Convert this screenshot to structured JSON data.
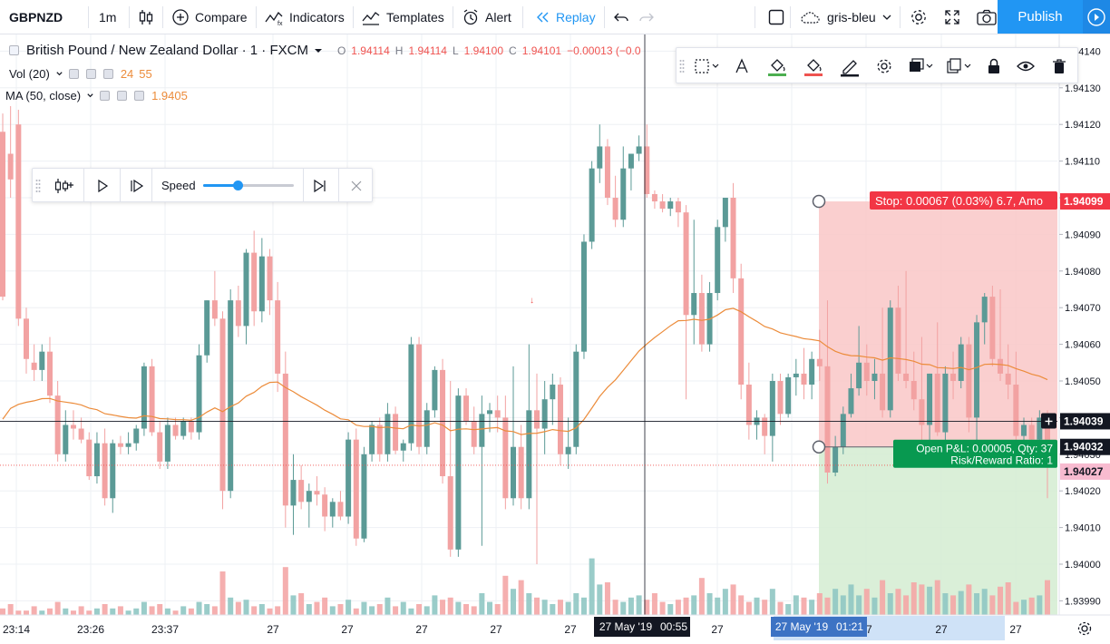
{
  "toolbar": {
    "symbol": "GBPNZD",
    "interval": "1m",
    "compare_label": "Compare",
    "indicators_label": "Indicators",
    "templates_label": "Templates",
    "alert_label": "Alert",
    "replay_label": "Replay",
    "layout_name": "gris-bleu",
    "publish_label": "Publish"
  },
  "legend": {
    "title": "British Pound / New Zealand Dollar · 1 · FXCM",
    "ohlc": {
      "o_label": "O",
      "o": "1.94114",
      "h_label": "H",
      "h": "1.94114",
      "l_label": "L",
      "l": "1.94100",
      "c_label": "C",
      "c": "1.94101",
      "change": "−0.00013 (−0.0"
    },
    "vol_label": "Vol (20)",
    "vol_values": [
      "24",
      "55"
    ],
    "ma_label": "MA (50, close)",
    "ma_value": "1.9405"
  },
  "replay_bar": {
    "speed_label": "Speed",
    "speed_level": 0.38
  },
  "chart_data": {
    "type": "candlestick",
    "price_axis": {
      "min": 1.93985,
      "max": 1.94143,
      "ticks": [
        "1.94140",
        "1.94130",
        "1.94120",
        "1.94110",
        "1.94100",
        "1.94090",
        "1.94080",
        "1.94070",
        "1.94060",
        "1.94050",
        "1.94040",
        "1.94030",
        "1.94020",
        "1.94010",
        "1.94000",
        "1.93990"
      ]
    },
    "time_ticks": [
      "23:14",
      "23:26",
      "23:37",
      "27",
      "27",
      "27",
      "27",
      "27",
      "27",
      "27",
      "27",
      "27"
    ],
    "crosshair": {
      "time_label": "27 May '19",
      "time_value": "00:55",
      "price": "1.94039"
    },
    "position": {
      "type": "long",
      "entry": 1.94032,
      "stop": 1.94099,
      "stop_label": "Stop: 0.00067 (0.03%) 6.7, Amo",
      "pnl_label": "Open P&L: 0.00005, Qty: 37",
      "rr_label": "Risk/Reward Ratio: 1",
      "date_label": "27 May '19",
      "time_label": "01:21"
    },
    "last_price": "1.94027",
    "colors": {
      "up": "#5b9a96",
      "down": "#f2a2a2",
      "ma": "#ec8c3b",
      "stop_zone": "#f9c7c7",
      "target_zone": "#d3ecd1"
    },
    "candles": [
      [
        1.94118,
        1.94123,
        1.94072,
        1.94073
      ],
      [
        1.94112,
        1.94125,
        1.941,
        1.94105
      ],
      [
        1.9412,
        1.94124,
        1.94065,
        1.94067
      ],
      [
        1.94067,
        1.9407,
        1.94052,
        1.94056
      ],
      [
        1.94055,
        1.9406,
        1.9405,
        1.94053
      ],
      [
        1.94053,
        1.9406,
        1.9405,
        1.94058
      ],
      [
        1.94058,
        1.94062,
        1.94044,
        1.94046
      ],
      [
        1.94046,
        1.9405,
        1.94028,
        1.9403
      ],
      [
        1.9403,
        1.94042,
        1.94028,
        1.94038
      ],
      [
        1.94038,
        1.94042,
        1.94034,
        1.94037
      ],
      [
        1.94037,
        1.9404,
        1.94033,
        1.94034
      ],
      [
        1.94034,
        1.94036,
        1.94023,
        1.94024
      ],
      [
        1.94024,
        1.94036,
        1.94022,
        1.94033
      ],
      [
        1.94033,
        1.94037,
        1.94016,
        1.94018
      ],
      [
        1.94018,
        1.94034,
        1.94014,
        1.94033
      ],
      [
        1.94033,
        1.94035,
        1.9403,
        1.94032
      ],
      [
        1.94032,
        1.94036,
        1.9403,
        1.94033
      ],
      [
        1.94033,
        1.94038,
        1.94031,
        1.94037
      ],
      [
        1.94037,
        1.94055,
        1.94035,
        1.94054
      ],
      [
        1.94054,
        1.94056,
        1.94035,
        1.94036
      ],
      [
        1.94036,
        1.94039,
        1.94026,
        1.94028
      ],
      [
        1.94028,
        1.9404,
        1.94026,
        1.94038
      ],
      [
        1.94038,
        1.9404,
        1.94034,
        1.94035
      ],
      [
        1.94035,
        1.9404,
        1.94034,
        1.94039
      ],
      [
        1.94039,
        1.9404,
        1.94034,
        1.94036
      ],
      [
        1.94036,
        1.9406,
        1.94034,
        1.94057
      ],
      [
        1.94057,
        1.94072,
        1.94055,
        1.94072
      ],
      [
        1.94072,
        1.9408,
        1.94065,
        1.94067
      ],
      [
        1.94067,
        1.94069,
        1.94015,
        1.9402
      ],
      [
        1.9402,
        1.94075,
        1.94018,
        1.94072
      ],
      [
        1.94072,
        1.94076,
        1.94062,
        1.94065
      ],
      [
        1.94065,
        1.94086,
        1.9406,
        1.94085
      ],
      [
        1.94085,
        1.94091,
        1.94065,
        1.94069
      ],
      [
        1.94069,
        1.94089,
        1.94066,
        1.94084
      ],
      [
        1.94084,
        1.94086,
        1.94068,
        1.94072
      ],
      [
        1.94072,
        1.94077,
        1.94047,
        1.94052
      ],
      [
        1.94052,
        1.94058,
        1.9401,
        1.94016
      ],
      [
        1.94016,
        1.9403,
        1.94008,
        1.94023
      ],
      [
        1.94023,
        1.94027,
        1.94015,
        1.94017
      ],
      [
        1.94017,
        1.94022,
        1.9401,
        1.9402
      ],
      [
        1.9402,
        1.94024,
        1.94016,
        1.94019
      ],
      [
        1.94019,
        1.94021,
        1.94009,
        1.94013
      ],
      [
        1.94013,
        1.94018,
        1.9401,
        1.94017
      ],
      [
        1.94017,
        1.9402,
        1.94012,
        1.94013
      ],
      [
        1.94013,
        1.94036,
        1.94011,
        1.94034
      ],
      [
        1.94034,
        1.94037,
        1.94005,
        1.94007
      ],
      [
        1.94007,
        1.94032,
        1.94006,
        1.9403
      ],
      [
        1.9403,
        1.94039,
        1.94028,
        1.94038
      ],
      [
        1.94038,
        1.9404,
        1.94028,
        1.9403
      ],
      [
        1.9403,
        1.94044,
        1.94028,
        1.94041
      ],
      [
        1.94041,
        1.94043,
        1.9403,
        1.94031
      ],
      [
        1.94031,
        1.94034,
        1.94028,
        1.94033
      ],
      [
        1.94033,
        1.94062,
        1.94031,
        1.9406
      ],
      [
        1.9406,
        1.94062,
        1.9403,
        1.94032
      ],
      [
        1.94032,
        1.94044,
        1.9403,
        1.94042
      ],
      [
        1.94042,
        1.94054,
        1.9404,
        1.94053
      ],
      [
        1.94053,
        1.94056,
        1.94022,
        1.94024
      ],
      [
        1.94024,
        1.9405,
        1.94002,
        1.94004
      ],
      [
        1.94004,
        1.94048,
        1.94002,
        1.94046
      ],
      [
        1.94046,
        1.94048,
        1.94038,
        1.94039
      ],
      [
        1.94039,
        1.94043,
        1.9403,
        1.94032
      ],
      [
        1.94032,
        1.94046,
        1.94005,
        1.94041
      ],
      [
        1.94041,
        1.94044,
        1.94036,
        1.94042
      ],
      [
        1.94042,
        1.94046,
        1.94036,
        1.9404
      ],
      [
        1.9404,
        1.94046,
        1.94015,
        1.94018
      ],
      [
        1.94018,
        1.94054,
        1.94016,
        1.94032
      ],
      [
        1.94032,
        1.94038,
        1.94015,
        1.94018
      ],
      [
        1.94018,
        1.9406,
        1.94015,
        1.94042
      ],
      [
        1.94042,
        1.94052,
        1.94,
        1.94037
      ],
      [
        1.94037,
        1.9405,
        1.9403,
        1.94045
      ],
      [
        1.94045,
        1.94052,
        1.94038,
        1.94049
      ],
      [
        1.94049,
        1.94051,
        1.94027,
        1.9403
      ],
      [
        1.9403,
        1.9404,
        1.94026,
        1.94032
      ],
      [
        1.94032,
        1.9406,
        1.9403,
        1.94058
      ],
      [
        1.94058,
        1.9409,
        1.94056,
        1.94088
      ],
      [
        1.94088,
        1.9411,
        1.94086,
        1.94108
      ],
      [
        1.94108,
        1.9412,
        1.94104,
        1.94114
      ],
      [
        1.94114,
        1.94116,
        1.94098,
        1.941
      ],
      [
        1.941,
        1.94106,
        1.94092,
        1.94094
      ],
      [
        1.94094,
        1.94114,
        1.94092,
        1.94108
      ],
      [
        1.94108,
        1.94112,
        1.94102,
        1.94112
      ],
      [
        1.94112,
        1.94117,
        1.9411,
        1.94114
      ],
      [
        1.94114,
        1.9412,
        1.941,
        1.94101
      ],
      [
        1.94101,
        1.94102,
        1.94097,
        1.94099
      ],
      [
        1.94099,
        1.94101,
        1.94096,
        1.94097
      ],
      [
        1.94097,
        1.941,
        1.94095,
        1.94099
      ],
      [
        1.94099,
        1.941,
        1.94092,
        1.94096
      ],
      [
        1.94096,
        1.94098,
        1.94045,
        1.94068
      ],
      [
        1.94068,
        1.94094,
        1.9406,
        1.94074
      ],
      [
        1.94074,
        1.94079,
        1.94058,
        1.9406
      ],
      [
        1.9406,
        1.94077,
        1.94058,
        1.94074
      ],
      [
        1.94074,
        1.94094,
        1.94072,
        1.94092
      ],
      [
        1.94092,
        1.941,
        1.94088,
        1.941
      ],
      [
        1.941,
        1.94104,
        1.94074,
        1.94078
      ],
      [
        1.94078,
        1.94082,
        1.94045,
        1.94049
      ],
      [
        1.94049,
        1.94055,
        1.94034,
        1.94038
      ],
      [
        1.94038,
        1.94042,
        1.94034,
        1.9404
      ],
      [
        1.9404,
        1.94041,
        1.9403,
        1.94035
      ],
      [
        1.94035,
        1.94052,
        1.94028,
        1.9405
      ],
      [
        1.9405,
        1.94052,
        1.94038,
        1.94041
      ],
      [
        1.94041,
        1.94052,
        1.9404,
        1.94051
      ],
      [
        1.94051,
        1.94056,
        1.94046,
        1.94052
      ],
      [
        1.94052,
        1.94059,
        1.94045,
        1.94049
      ],
      [
        1.94049,
        1.94058,
        1.94045,
        1.94056
      ],
      [
        1.94056,
        1.94064,
        1.9405,
        1.94054
      ],
      [
        1.94054,
        1.94072,
        1.94022,
        1.94025
      ],
      [
        1.94025,
        1.94035,
        1.94024,
        1.94032
      ],
      [
        1.94032,
        1.94043,
        1.9403,
        1.94041
      ],
      [
        1.94041,
        1.94052,
        1.9404,
        1.94048
      ],
      [
        1.94048,
        1.94065,
        1.94046,
        1.94055
      ],
      [
        1.94055,
        1.9406,
        1.94046,
        1.9405
      ],
      [
        1.9405,
        1.94056,
        1.94045,
        1.94052
      ],
      [
        1.94052,
        1.9407,
        1.9404,
        1.94042
      ],
      [
        1.94042,
        1.94072,
        1.9404,
        1.9407
      ],
      [
        1.9407,
        1.94076,
        1.9405,
        1.94052
      ],
      [
        1.94052,
        1.9408,
        1.94048,
        1.9405
      ],
      [
        1.9405,
        1.94058,
        1.94042,
        1.94045
      ],
      [
        1.94045,
        1.94062,
        1.94028,
        1.94038
      ],
      [
        1.94038,
        1.94052,
        1.9403,
        1.94052
      ],
      [
        1.94052,
        1.94066,
        1.94035,
        1.94036
      ],
      [
        1.94036,
        1.94054,
        1.9403,
        1.94052
      ],
      [
        1.94052,
        1.94058,
        1.94045,
        1.9405
      ],
      [
        1.9405,
        1.94062,
        1.94048,
        1.9406
      ],
      [
        1.9406,
        1.94062,
        1.94036,
        1.9404
      ],
      [
        1.9404,
        1.94068,
        1.94032,
        1.94066
      ],
      [
        1.94066,
        1.94074,
        1.9406,
        1.94073
      ],
      [
        1.94073,
        1.94076,
        1.94054,
        1.94056
      ],
      [
        1.94056,
        1.94075,
        1.9405,
        1.94052
      ],
      [
        1.94052,
        1.9406,
        1.94045,
        1.94049
      ],
      [
        1.94049,
        1.94058,
        1.94032,
        1.94035
      ],
      [
        1.94035,
        1.9404,
        1.9403,
        1.94038
      ],
      [
        1.94038,
        1.9404,
        1.94032,
        1.94034
      ],
      [
        1.94034,
        1.94042,
        1.9403,
        1.9404
      ],
      [
        1.9404,
        1.94042,
        1.94018,
        1.9403
      ]
    ],
    "volumes": [
      3,
      5,
      2,
      2,
      4,
      2,
      3,
      6,
      3,
      2,
      4,
      2,
      3,
      5,
      3,
      4,
      2,
      3,
      6,
      4,
      5,
      3,
      2,
      4,
      3,
      6,
      5,
      4,
      20,
      8,
      6,
      7,
      4,
      5,
      3,
      4,
      22,
      9,
      10,
      5,
      6,
      8,
      4,
      5,
      7,
      3,
      6,
      4,
      5,
      8,
      4,
      6,
      3,
      5,
      4,
      9,
      7,
      8,
      6,
      5,
      4,
      10,
      6,
      5,
      18,
      12,
      16,
      10,
      8,
      7,
      5,
      7,
      6,
      10,
      8,
      26,
      14,
      15,
      7,
      6,
      8,
      9,
      7,
      10,
      6,
      5,
      7,
      8,
      9,
      17,
      10,
      8,
      12,
      14,
      9,
      6,
      8,
      7,
      12,
      6,
      5,
      9,
      8,
      7,
      10,
      8,
      12,
      9,
      14,
      9,
      12,
      8,
      16,
      10,
      12,
      9,
      15,
      14,
      13,
      16,
      10,
      9,
      11,
      14,
      10,
      12,
      9,
      13,
      15,
      6,
      7,
      8,
      9,
      16
    ]
  }
}
